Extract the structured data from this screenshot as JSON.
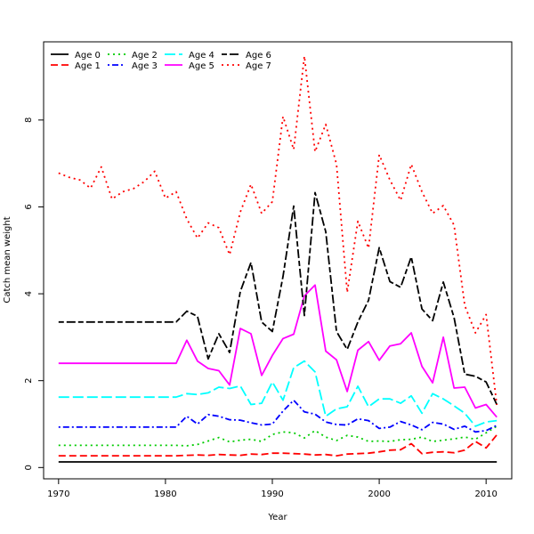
{
  "chart_data": {
    "type": "line",
    "title": "",
    "xlabel": "Year",
    "ylabel": "Catch mean weight",
    "xlim": [
      1968.6,
      2012.4
    ],
    "ylim": [
      -0.26,
      9.8
    ],
    "xticks": [
      1970,
      1980,
      1990,
      2000,
      2010
    ],
    "yticks": [
      0,
      2,
      4,
      6,
      8
    ],
    "legend_position": "top-left",
    "x": [
      1970,
      1971,
      1972,
      1973,
      1974,
      1975,
      1976,
      1977,
      1978,
      1979,
      1980,
      1981,
      1982,
      1983,
      1984,
      1985,
      1986,
      1987,
      1988,
      1989,
      1990,
      1991,
      1992,
      1993,
      1994,
      1995,
      1996,
      1997,
      1998,
      1999,
      2000,
      2001,
      2002,
      2003,
      2004,
      2005,
      2006,
      2007,
      2008,
      2009,
      2010,
      2011
    ],
    "series": [
      {
        "name": "Age 0",
        "color": "#000000",
        "dash": "solid",
        "values": [
          0.13,
          0.13,
          0.13,
          0.13,
          0.13,
          0.13,
          0.13,
          0.13,
          0.13,
          0.13,
          0.13,
          0.13,
          0.13,
          0.13,
          0.13,
          0.13,
          0.13,
          0.13,
          0.13,
          0.13,
          0.13,
          0.13,
          0.13,
          0.13,
          0.13,
          0.13,
          0.13,
          0.13,
          0.13,
          0.13,
          0.13,
          0.13,
          0.13,
          0.13,
          0.13,
          0.13,
          0.13,
          0.13,
          0.13,
          0.13,
          0.13,
          0.13
        ]
      },
      {
        "name": "Age 1",
        "color": "#ff0000",
        "dash": "dashed",
        "values": [
          0.27,
          0.27,
          0.27,
          0.27,
          0.27,
          0.27,
          0.27,
          0.27,
          0.27,
          0.27,
          0.27,
          0.27,
          0.28,
          0.29,
          0.28,
          0.3,
          0.29,
          0.28,
          0.31,
          0.3,
          0.33,
          0.33,
          0.32,
          0.31,
          0.29,
          0.3,
          0.27,
          0.31,
          0.32,
          0.33,
          0.36,
          0.4,
          0.41,
          0.55,
          0.32,
          0.35,
          0.36,
          0.34,
          0.4,
          0.6,
          0.45,
          0.75
        ]
      },
      {
        "name": "Age 2",
        "color": "#00cc00",
        "dash": "dotted",
        "values": [
          0.51,
          0.51,
          0.51,
          0.51,
          0.51,
          0.51,
          0.51,
          0.51,
          0.51,
          0.51,
          0.51,
          0.51,
          0.5,
          0.53,
          0.61,
          0.69,
          0.59,
          0.63,
          0.65,
          0.6,
          0.76,
          0.82,
          0.8,
          0.68,
          0.85,
          0.7,
          0.62,
          0.74,
          0.7,
          0.6,
          0.61,
          0.6,
          0.64,
          0.65,
          0.7,
          0.6,
          0.63,
          0.66,
          0.7,
          0.65,
          0.8,
          0.95
        ]
      },
      {
        "name": "Age 3",
        "color": "#0000ff",
        "dash": "dotdash",
        "values": [
          0.93,
          0.93,
          0.93,
          0.93,
          0.93,
          0.93,
          0.93,
          0.93,
          0.93,
          0.93,
          0.93,
          0.93,
          1.18,
          1.0,
          1.22,
          1.18,
          1.1,
          1.09,
          1.03,
          0.98,
          1.0,
          1.3,
          1.55,
          1.28,
          1.23,
          1.05,
          0.99,
          0.98,
          1.12,
          1.08,
          0.9,
          0.93,
          1.06,
          0.98,
          0.87,
          1.04,
          1.0,
          0.88,
          0.95,
          0.82,
          0.85,
          0.97
        ]
      },
      {
        "name": "Age 4",
        "color": "#00ffff",
        "dash": "longdash",
        "values": [
          1.62,
          1.62,
          1.62,
          1.62,
          1.62,
          1.62,
          1.62,
          1.62,
          1.62,
          1.62,
          1.62,
          1.62,
          1.7,
          1.68,
          1.72,
          1.85,
          1.82,
          1.88,
          1.45,
          1.48,
          1.97,
          1.55,
          2.3,
          2.45,
          2.2,
          1.18,
          1.35,
          1.4,
          1.87,
          1.4,
          1.58,
          1.58,
          1.48,
          1.65,
          1.25,
          1.7,
          1.58,
          1.42,
          1.25,
          0.95,
          1.05,
          1.08
        ]
      },
      {
        "name": "Age 5",
        "color": "#ff00ff",
        "dash": "solid",
        "values": [
          2.4,
          2.4,
          2.4,
          2.4,
          2.4,
          2.4,
          2.4,
          2.4,
          2.4,
          2.4,
          2.4,
          2.4,
          2.93,
          2.45,
          2.28,
          2.23,
          1.9,
          3.2,
          3.08,
          2.12,
          2.58,
          2.97,
          3.07,
          3.95,
          4.2,
          2.68,
          2.48,
          1.75,
          2.7,
          2.9,
          2.47,
          2.8,
          2.85,
          3.1,
          2.33,
          1.95,
          3.0,
          1.83,
          1.85,
          1.37,
          1.45,
          1.16
        ]
      },
      {
        "name": "Age 6",
        "color": "#000000",
        "dash": "twodash",
        "values": [
          3.35,
          3.35,
          3.35,
          3.35,
          3.35,
          3.35,
          3.35,
          3.35,
          3.35,
          3.35,
          3.35,
          3.35,
          3.6,
          3.48,
          2.5,
          3.08,
          2.65,
          4.05,
          4.72,
          3.35,
          3.13,
          4.4,
          6.02,
          3.5,
          6.33,
          5.43,
          3.13,
          2.72,
          3.35,
          3.85,
          5.06,
          4.28,
          4.15,
          4.85,
          3.65,
          3.38,
          4.27,
          3.45,
          2.15,
          2.1,
          1.97,
          1.45
        ]
      },
      {
        "name": "Age 7",
        "color": "#ff0000",
        "dash": "dotted",
        "values": [
          6.78,
          6.68,
          6.62,
          6.43,
          6.92,
          6.18,
          6.35,
          6.42,
          6.58,
          6.82,
          6.2,
          6.35,
          5.72,
          5.28,
          5.63,
          5.52,
          4.9,
          5.88,
          6.52,
          5.85,
          6.12,
          8.08,
          7.32,
          9.47,
          7.27,
          7.9,
          6.98,
          4.03,
          5.67,
          5.05,
          7.2,
          6.62,
          6.15,
          6.98,
          6.35,
          5.85,
          6.03,
          5.58,
          3.73,
          3.1,
          3.52,
          1.44
        ]
      }
    ]
  }
}
